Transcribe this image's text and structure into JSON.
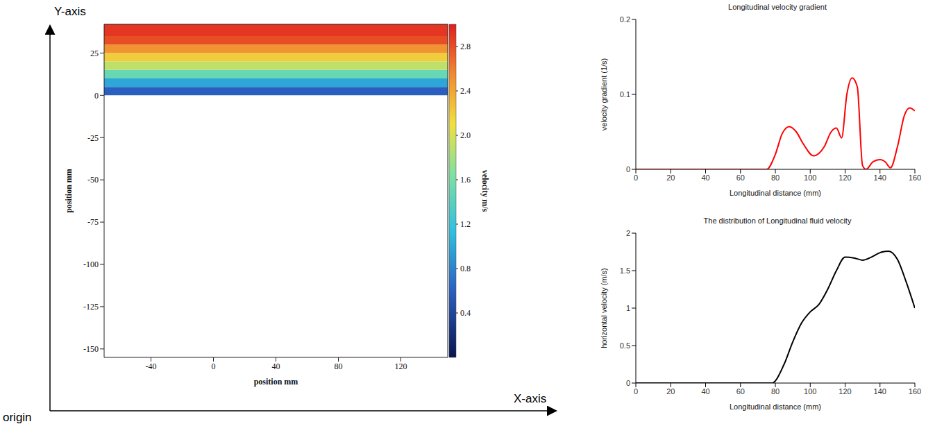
{
  "annotations": {
    "y_axis": "Y-axis",
    "x_axis": "X-axis",
    "origin": "origin"
  },
  "chart_data": [
    {
      "type": "heatmap",
      "xlabel": "position mm",
      "ylabel": "position mm",
      "xlim": [
        -70,
        150
      ],
      "xticks": [
        -40,
        0,
        40,
        80,
        120
      ],
      "ylim": [
        -155,
        42
      ],
      "yticks": [
        -150,
        -125,
        -100,
        -75,
        -50,
        -25,
        0,
        25
      ],
      "y_edges": [
        0,
        5,
        10,
        15,
        20,
        25,
        30,
        35,
        42
      ],
      "velocity": [
        0.6,
        1.0,
        1.5,
        1.9,
        2.2,
        2.5,
        2.8,
        2.9
      ],
      "colorbar": {
        "label": "velocity m/s",
        "range": [
          0,
          3
        ],
        "ticks": [
          0.4,
          0.8,
          1.2,
          1.6,
          {
            "value": 2,
            "label": "2.0"
          },
          2.4,
          2.8
        ]
      }
    },
    {
      "type": "line",
      "title": "Longitudinal velocity gradient",
      "xlabel": "Longitudinal distance (mm)",
      "ylabel": "velocity gradient (1/s)",
      "xlim": [
        0,
        160
      ],
      "xticks": [
        0,
        20,
        40,
        60,
        80,
        100,
        120,
        140,
        160
      ],
      "ylim": [
        0,
        0.2
      ],
      "yticks": [
        0,
        0.1,
        0.2
      ],
      "color": "#ff0000",
      "x": [
        0,
        20,
        40,
        60,
        75,
        80,
        84,
        88,
        92,
        96,
        102,
        108,
        112,
        115,
        118,
        121,
        124,
        127,
        130,
        132,
        136,
        140,
        143,
        146,
        150,
        154,
        157,
        160
      ],
      "values": [
        0,
        0,
        0,
        0,
        0,
        0.02,
        0.048,
        0.057,
        0.05,
        0.034,
        0.018,
        0.03,
        0.05,
        0.055,
        0.042,
        0.1,
        0.122,
        0.11,
        0.005,
        0,
        0.01,
        0.013,
        0.01,
        0.002,
        0.03,
        0.072,
        0.082,
        0.078
      ]
    },
    {
      "type": "line",
      "title": "The distribution of Longitudinal fluid velocity",
      "xlabel": "Longitudinal distance (mm)",
      "ylabel": "horizontal velocity (m/s)",
      "xlim": [
        0,
        160
      ],
      "xticks": [
        0,
        20,
        40,
        60,
        80,
        100,
        120,
        140,
        160
      ],
      "ylim": [
        0,
        2
      ],
      "yticks": [
        0,
        0.5,
        1,
        1.5,
        2
      ],
      "color": "#000000",
      "x": [
        0,
        20,
        40,
        60,
        78,
        85,
        90,
        95,
        100,
        105,
        110,
        115,
        120,
        125,
        130,
        135,
        140,
        145,
        150,
        155,
        160
      ],
      "values": [
        0,
        0,
        0,
        0,
        0,
        0.25,
        0.55,
        0.8,
        0.95,
        1.05,
        1.25,
        1.5,
        1.68,
        1.67,
        1.64,
        1.68,
        1.74,
        1.76,
        1.65,
        1.35,
        1.0
      ]
    }
  ]
}
